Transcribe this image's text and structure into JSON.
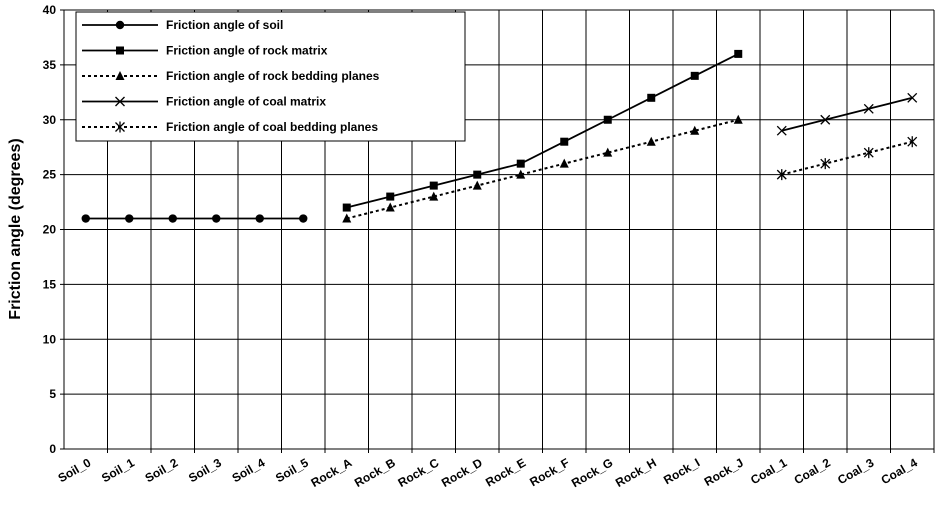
{
  "chart_data": {
    "type": "line",
    "y_label": "Friction angle (degrees)",
    "categories": [
      "Soil_0",
      "Soil_1",
      "Soil_2",
      "Soil_3",
      "Soil_4",
      "Soil_5",
      "Rock_A",
      "Rock_B",
      "Rock_C",
      "Rock_D",
      "Rock_E",
      "Rock_F",
      "Rock_G",
      "Rock_H",
      "Rock_I",
      "Rock_J",
      "Coal_1",
      "Coal_2",
      "Coal_3",
      "Coal_4"
    ],
    "series": [
      {
        "name": "Friction angle of soil",
        "color": "#000000",
        "marker": "circle",
        "dashed": false,
        "values": [
          21,
          21,
          21,
          21,
          21,
          21,
          null,
          null,
          null,
          null,
          null,
          null,
          null,
          null,
          null,
          null,
          null,
          null,
          null,
          null
        ]
      },
      {
        "name": "Friction angle of rock matrix",
        "color": "#000000",
        "marker": "square",
        "dashed": false,
        "values": [
          null,
          null,
          null,
          null,
          null,
          null,
          22,
          23,
          24,
          25,
          26,
          28,
          30,
          32,
          34,
          36,
          null,
          null,
          null,
          null
        ]
      },
      {
        "name": "Friction angle of rock bedding planes",
        "color": "#000000",
        "marker": "triangle",
        "dashed": true,
        "values": [
          null,
          null,
          null,
          null,
          null,
          null,
          21,
          22,
          23,
          24,
          25,
          26,
          27,
          28,
          29,
          30,
          null,
          null,
          null,
          null
        ]
      },
      {
        "name": "Friction angle of coal matrix",
        "color": "#000000",
        "marker": "x",
        "dashed": false,
        "values": [
          null,
          null,
          null,
          null,
          null,
          null,
          null,
          null,
          null,
          null,
          null,
          null,
          null,
          null,
          null,
          null,
          29,
          30,
          31,
          32
        ]
      },
      {
        "name": "Friction angle of coal bedding planes",
        "color": "#000000",
        "marker": "asterisk",
        "dashed": true,
        "values": [
          null,
          null,
          null,
          null,
          null,
          null,
          null,
          null,
          null,
          null,
          null,
          null,
          null,
          null,
          null,
          null,
          25,
          26,
          27,
          28
        ]
      }
    ],
    "ylim": [
      0,
      40
    ],
    "yticks": [
      0,
      5,
      10,
      15,
      20,
      25,
      30,
      35,
      40
    ],
    "grid": true,
    "legend": "top-left"
  }
}
